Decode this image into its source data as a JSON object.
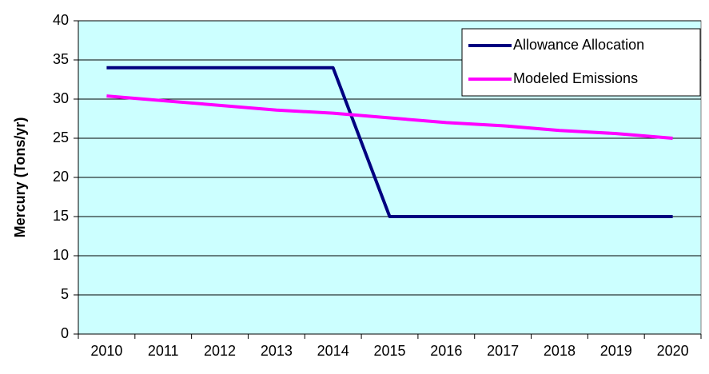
{
  "chart_data": {
    "type": "line",
    "y_label": "Mercury (Tons/yr)",
    "categories": [
      "2010",
      "2011",
      "2012",
      "2013",
      "2014",
      "2015",
      "2016",
      "2017",
      "2018",
      "2019",
      "2020"
    ],
    "series": [
      {
        "name": "Allowance Allocation",
        "color": "#000080",
        "values": [
          34,
          34,
          34,
          34,
          34,
          15,
          15,
          15,
          15,
          15,
          15
        ]
      },
      {
        "name": "Modeled Emissions",
        "color": "#ff00ff",
        "values": [
          30.4,
          29.8,
          29.2,
          28.6,
          28.2,
          27.6,
          27.0,
          26.6,
          26.0,
          25.6,
          25.0
        ]
      }
    ],
    "ylim": [
      0,
      40
    ],
    "yticks": [
      0,
      5,
      10,
      15,
      20,
      25,
      30,
      35,
      40
    ],
    "grid": true,
    "background": "#ccffff",
    "legend": "top-right"
  }
}
